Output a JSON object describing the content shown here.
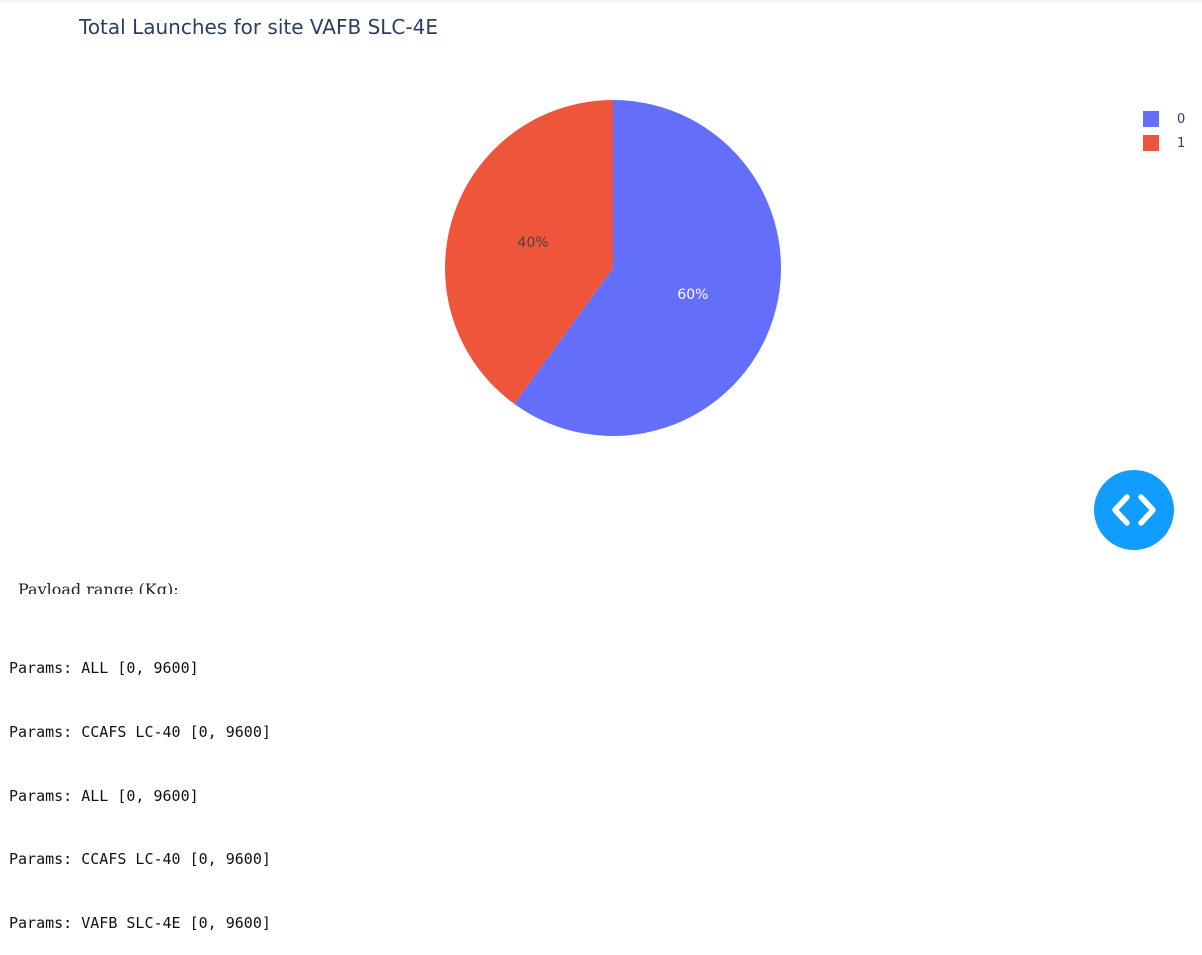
{
  "chart_data": {
    "type": "pie",
    "title": "Total Launches for site VAFB SLC-4E",
    "categories": [
      "0",
      "1"
    ],
    "values": [
      60,
      40
    ],
    "labels": [
      "60%",
      "40%"
    ],
    "colors": [
      "#636efa",
      "#ef553b"
    ],
    "label_colors": [
      "#ffffff",
      "#444444"
    ],
    "legend": {
      "entries": [
        "0",
        "1"
      ],
      "placement": "top-right"
    }
  },
  "controls": {
    "payload_label": "Payload range (Kg):"
  },
  "params_log": [
    "Params: ALL [0, 9600]",
    "Params: CCAFS LC-40 [0, 9600]",
    "Params: ALL [0, 9600]",
    "Params: CCAFS LC-40 [0, 9600]",
    "Params: VAFB SLC-4E [0, 9600]"
  ],
  "icons": {
    "fab": "code-brackets-icon"
  }
}
